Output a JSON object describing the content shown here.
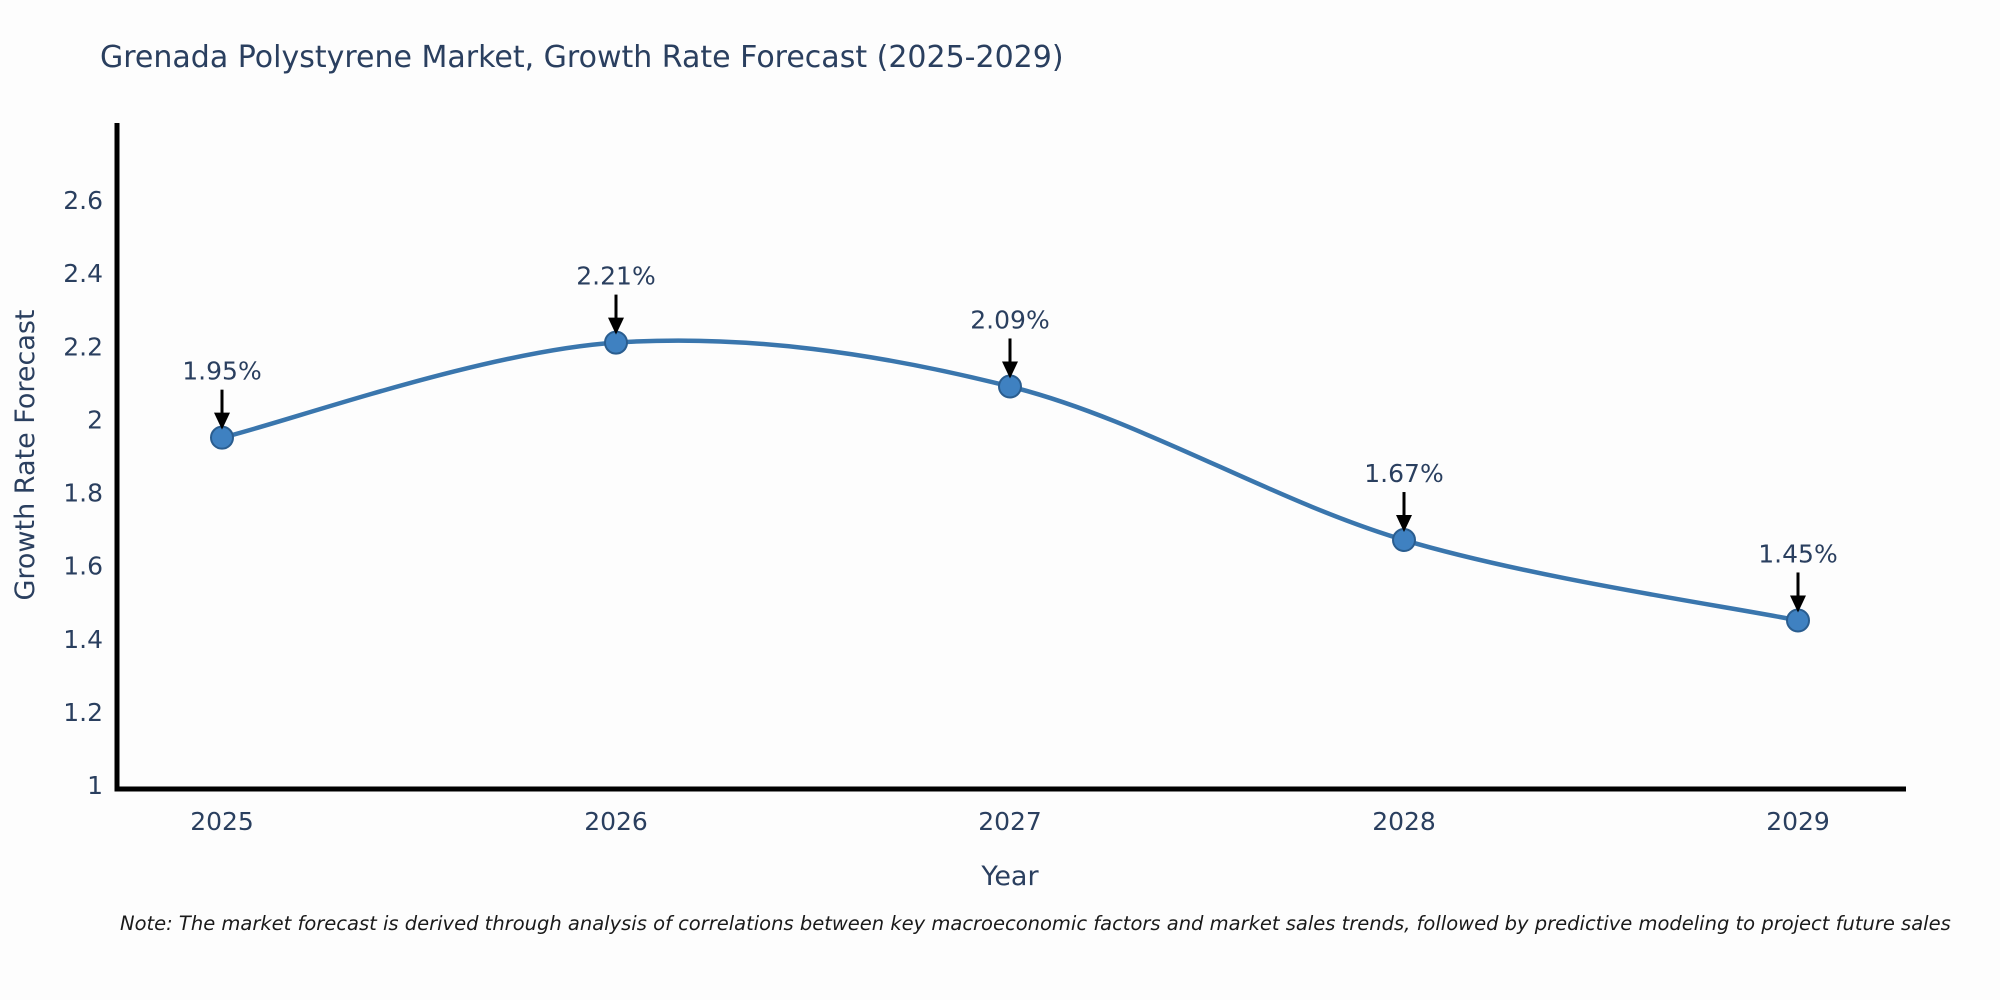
{
  "note": "Note: The market forecast is derived through analysis of correlations between key macroeconomic factors and market sales trends, followed by predictive modeling to project future sales",
  "chart_data": {
    "type": "line",
    "title": "Grenada Polystyrene Market, Growth Rate Forecast (2025-2029)",
    "xlabel": "Year",
    "ylabel": "Growth Rate Forecast",
    "categories": [
      "2025",
      "2026",
      "2027",
      "2028",
      "2029"
    ],
    "series": [
      {
        "name": "Growth Rate Forecast",
        "values": [
          1.95,
          2.21,
          2.09,
          1.67,
          1.45
        ],
        "point_labels": [
          "1.95%",
          "2.21%",
          "2.09%",
          "1.67%",
          "1.45%"
        ]
      }
    ],
    "ylim": [
      1,
      2.6
    ],
    "yticks": [
      "1",
      "1.2",
      "1.4",
      "1.6",
      "1.8",
      "2",
      "2.2",
      "2.4",
      "2.6"
    ],
    "grid": false,
    "legend": "none",
    "smooth_line": true,
    "colors": {
      "line": "#3a76ad",
      "marker_fill": "#3f81c1",
      "marker_stroke": "#2a5d8f",
      "axis": "#000000",
      "tick_text": "#2a3f5f",
      "annotation_text": "#2a3f5f",
      "annotation_arrow": "#000000"
    }
  }
}
